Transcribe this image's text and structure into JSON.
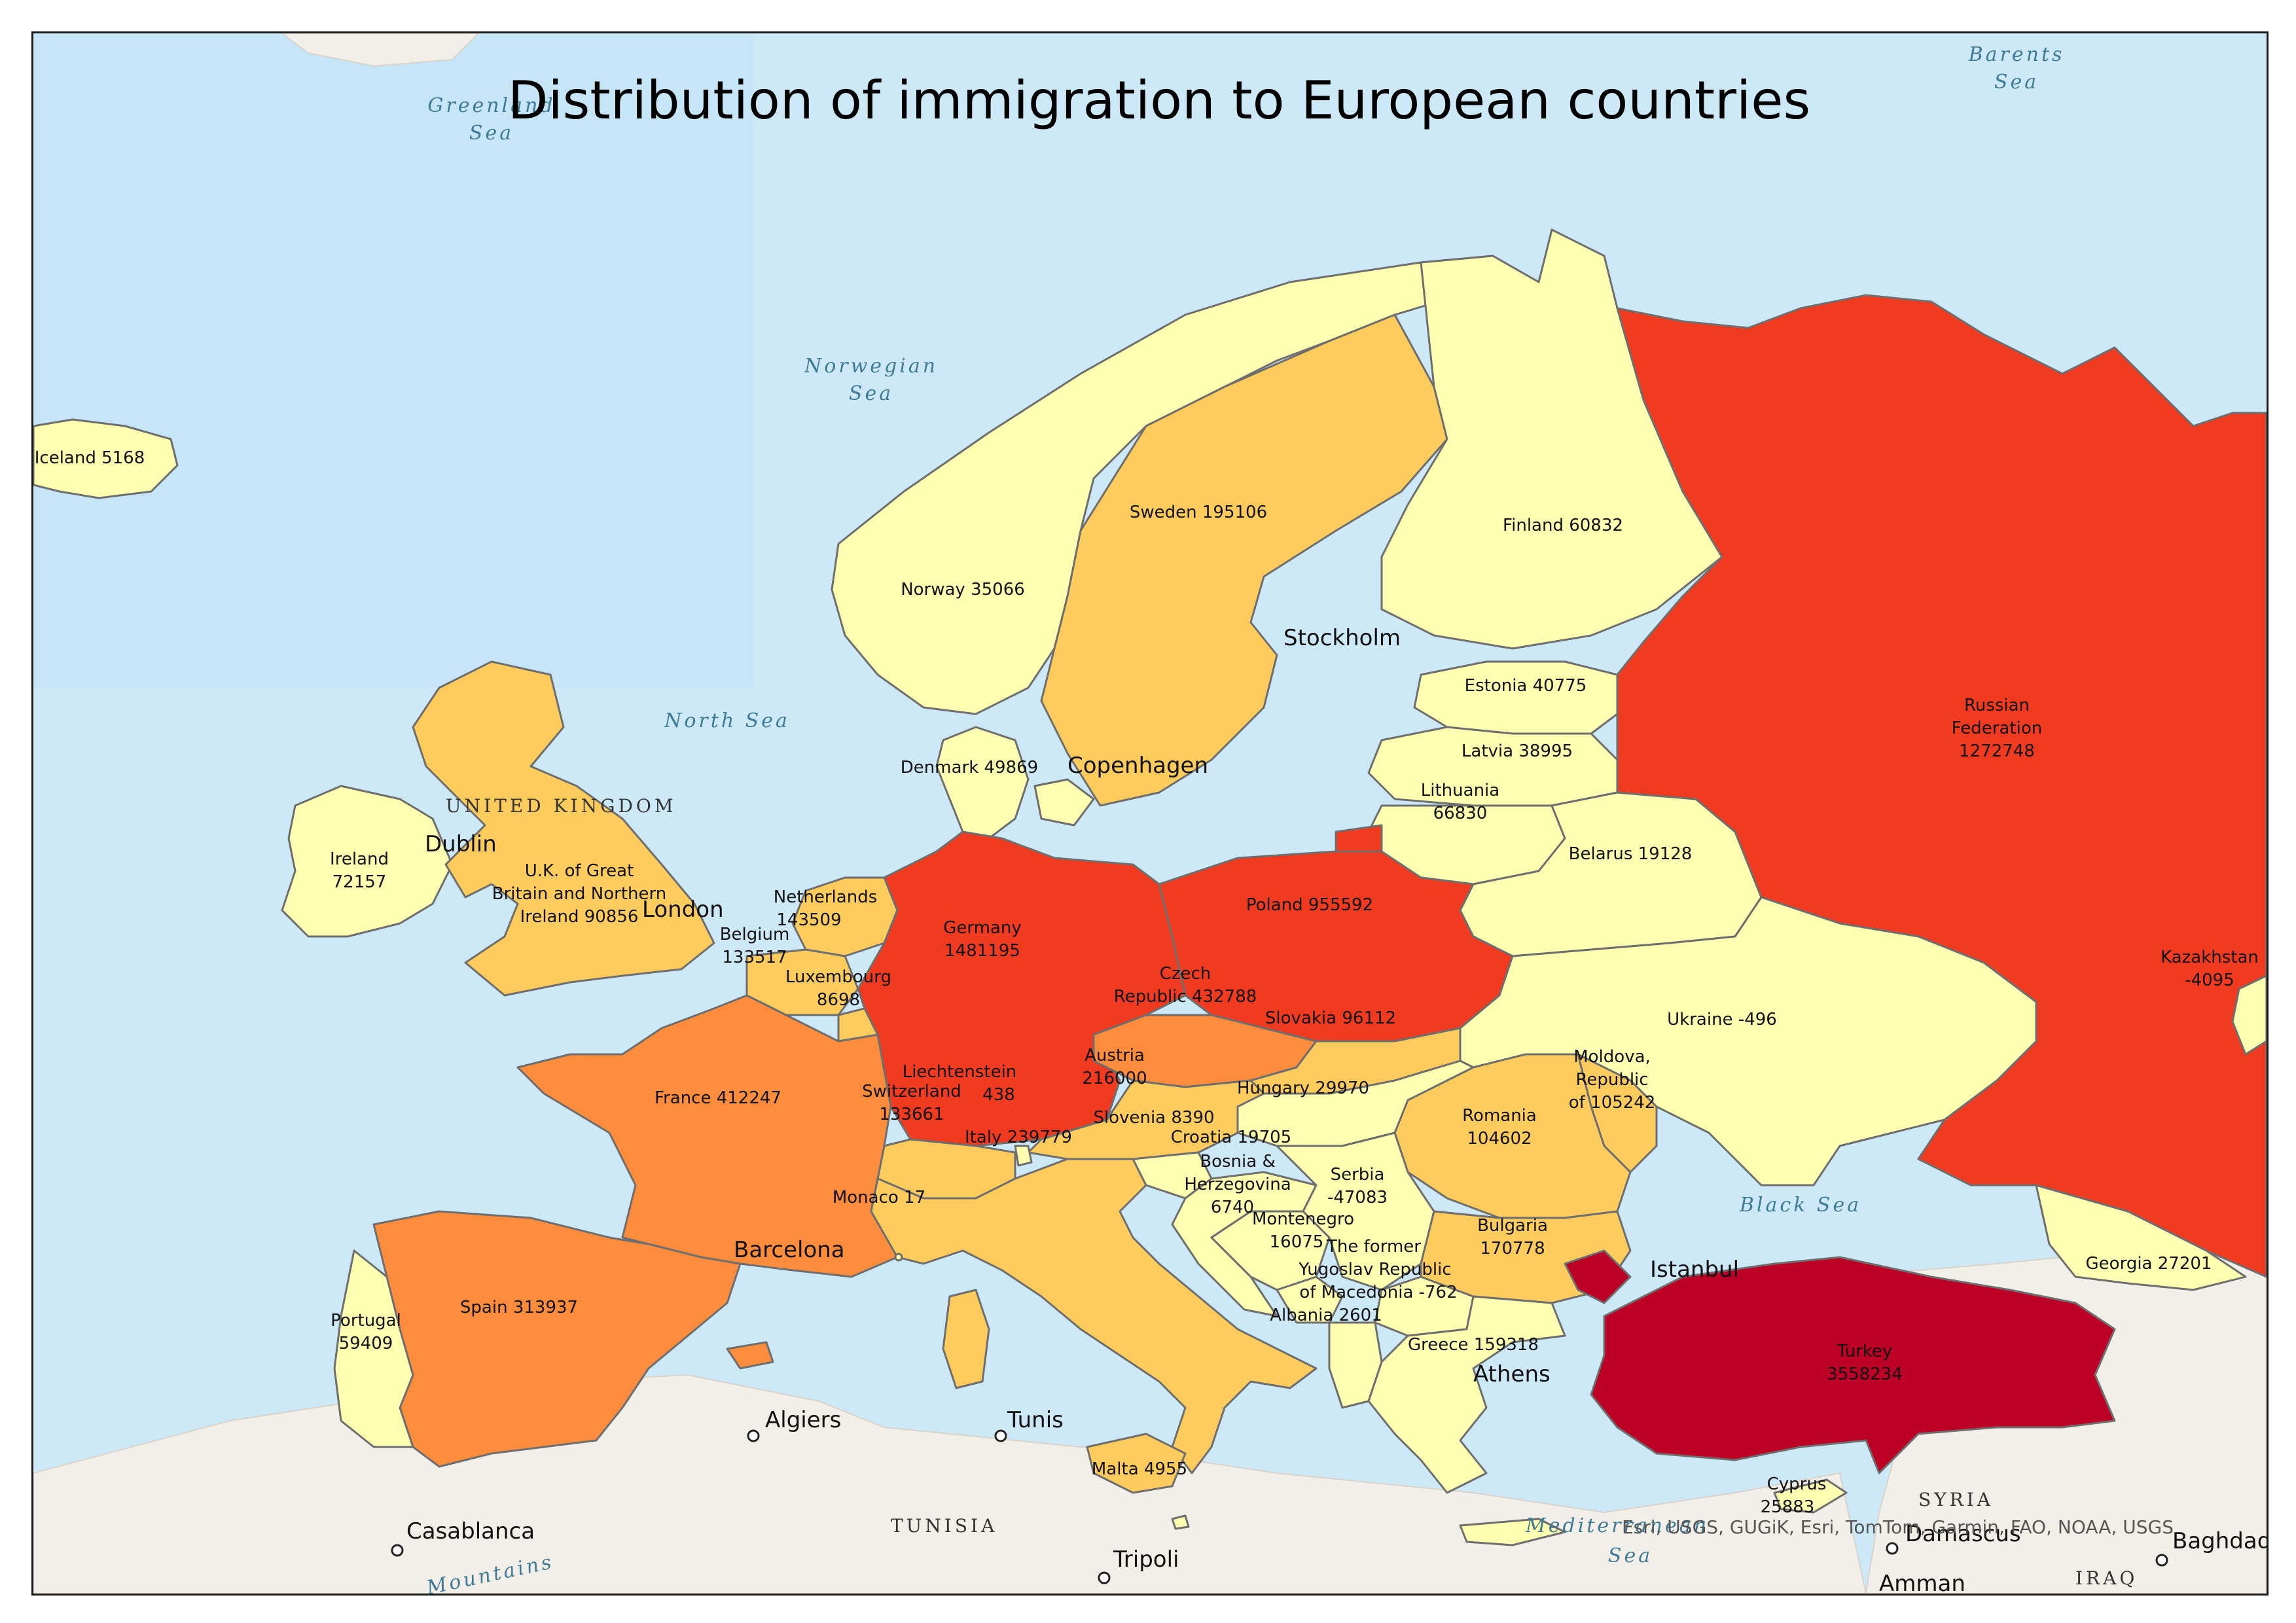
{
  "title": "Distribution of immigration to European countries",
  "attribution": "Esri, USGS, GUGiK, Esri, TomTom, Garmin, FAO, NOAA, USGS",
  "colors": {
    "sea": "#cde9f8",
    "class_1": "#ffffb2",
    "class_2": "#fecc5c",
    "class_3": "#fd8d3c",
    "class_4": "#f03b20",
    "class_5": "#bd0026"
  },
  "countries": [
    {
      "name": "Iceland",
      "value": 5168
    },
    {
      "name": "Norway",
      "value": 35066
    },
    {
      "name": "Sweden",
      "value": 195106
    },
    {
      "name": "Finland",
      "value": 60832
    },
    {
      "name": "Russian Federation",
      "value": 1272748
    },
    {
      "name": "Estonia",
      "value": 40775
    },
    {
      "name": "Latvia",
      "value": 38995
    },
    {
      "name": "Lithuania",
      "value": 66830
    },
    {
      "name": "Belarus",
      "value": 19128
    },
    {
      "name": "Denmark",
      "value": 49869
    },
    {
      "name": "Ireland",
      "value": 72157
    },
    {
      "name": "U.K. of Great Britain and Northern Ireland",
      "value": 90856
    },
    {
      "name": "Netherlands",
      "value": 143509
    },
    {
      "name": "Belgium",
      "value": 133517
    },
    {
      "name": "Luxembourg",
      "value": 8698
    },
    {
      "name": "Germany",
      "value": 1481195
    },
    {
      "name": "Poland",
      "value": 955592
    },
    {
      "name": "Czech Republic",
      "value": 432788
    },
    {
      "name": "Slovakia",
      "value": 96112
    },
    {
      "name": "Ukraine",
      "value": -496
    },
    {
      "name": "Kazakhstan",
      "value": -4095
    },
    {
      "name": "France",
      "value": 412247
    },
    {
      "name": "Liechtenstein",
      "value": 438
    },
    {
      "name": "Switzerland",
      "value": 133661
    },
    {
      "name": "Austria",
      "value": 216000
    },
    {
      "name": "Hungary",
      "value": 29970
    },
    {
      "name": "Moldova, Republic of",
      "value": 105242
    },
    {
      "name": "Romania",
      "value": 104602
    },
    {
      "name": "Slovenia",
      "value": 8390
    },
    {
      "name": "Croatia",
      "value": 19705
    },
    {
      "name": "Italy",
      "value": 239779
    },
    {
      "name": "Bosnia & Herzegovina",
      "value": 6740
    },
    {
      "name": "Serbia",
      "value": -47083
    },
    {
      "name": "Montenegro",
      "value": 16075
    },
    {
      "name": "Bulgaria",
      "value": 170778
    },
    {
      "name": "Monaco",
      "value": 17
    },
    {
      "name": "The former Yugoslav Republic of Macedonia",
      "value": -762
    },
    {
      "name": "Albania",
      "value": 2601
    },
    {
      "name": "Greece",
      "value": 159318
    },
    {
      "name": "Georgia",
      "value": 27201
    },
    {
      "name": "Spain",
      "value": 313937
    },
    {
      "name": "Portugal",
      "value": 59409
    },
    {
      "name": "Turkey",
      "value": 3558234
    },
    {
      "name": "Malta",
      "value": 4955
    },
    {
      "name": "Cyprus",
      "value": 25883
    }
  ],
  "labels": {
    "iceland": "Iceland 5168",
    "norway": "Norway 35066",
    "sweden": "Sweden 195106",
    "finland": "Finland 60832",
    "russia_1": "Russian",
    "russia_2": "Federation",
    "russia_3": "1272748",
    "estonia": "Estonia 40775",
    "latvia": "Latvia 38995",
    "lithuania_1": "Lithuania",
    "lithuania_2": "66830",
    "belarus": "Belarus 19128",
    "denmark": "Denmark 49869",
    "ireland_1": "Ireland",
    "ireland_2": "72157",
    "uk_1": "U.K. of Great",
    "uk_2": "Britain and Northern",
    "uk_3": "Ireland 90856",
    "netherlands_1": "Netherlands",
    "netherlands_2": "143509",
    "belgium_1": "Belgium",
    "belgium_2": "133517",
    "luxembourg_1": "Luxembourg",
    "luxembourg_2": "8698",
    "germany_1": "Germany",
    "germany_2": "1481195",
    "poland": "Poland 955592",
    "czech_1": "Czech",
    "czech_2": "Republic 432788",
    "slovakia": "Slovakia 96112",
    "ukraine": "Ukraine -496",
    "kazakhstan_1": "Kazakhstan",
    "kazakhstan_2": "-4095",
    "france": "France 412247",
    "liechtenstein_1": "Liechtenstein",
    "liechtenstein_2": "438",
    "switzerland_1": "Switzerland",
    "switzerland_2": "133661",
    "austria_1": "Austria",
    "austria_2": "216000",
    "hungary": "Hungary 29970",
    "moldova_1": "Moldova,",
    "moldova_2": "Republic",
    "moldova_3": "of 105242",
    "romania_1": "Romania",
    "romania_2": "104602",
    "slovenia": "Slovenia 8390",
    "croatia": "Croatia 19705",
    "italy": "Italy 239779",
    "bosnia_1": "Bosnia &",
    "bosnia_2": "Herzegovina",
    "bosnia_3": "6740",
    "serbia_1": "Serbia",
    "serbia_2": "-47083",
    "montenegro_1": "Montenegro",
    "montenegro_2": "16075",
    "bulgaria_1": "Bulgaria",
    "bulgaria_2": "170778",
    "monaco": "Monaco 17",
    "macedonia_1": "The former",
    "macedonia_2": "Yugoslav Republic",
    "macedonia_3": "of Macedonia -762",
    "albania": "Albania 2601",
    "greece": "Greece 159318",
    "georgia": "Georgia 27201",
    "spain": "Spain 313937",
    "portugal_1": "Portugal",
    "portugal_2": "59409",
    "turkey_1": "Turkey",
    "turkey_2": "3558234",
    "malta": "Malta 4955",
    "cyprus_1": "Cyprus",
    "cyprus_2": "25883"
  },
  "seas": {
    "greenland_1": "Greenland",
    "greenland_2": "Sea",
    "barents_1": "Barents",
    "barents_2": "Sea",
    "norwegian_1": "Norwegian",
    "norwegian_2": "Sea",
    "north": "North Sea",
    "black": "Black Sea",
    "med_1": "Mediterranean",
    "med_2": "Sea"
  },
  "cities": {
    "stockholm": "Stockholm",
    "copenhagen": "Copenhagen",
    "dublin": "Dublin",
    "london": "London",
    "barcelona": "Barcelona",
    "istanbul": "Istanbul",
    "athens": "Athens",
    "algiers": "Algiers",
    "tunis": "Tunis",
    "casablanca": "Casablanca",
    "tripoli": "Tripoli",
    "damascus": "Damascus",
    "baghdad": "Baghdad",
    "amman": "Amman"
  },
  "regions": {
    "uk_region": "UNITED KINGDOM",
    "tunisia": "TUNISIA",
    "syria": "SYRIA",
    "iraq": "IRAQ",
    "mountains": "Mountains"
  }
}
